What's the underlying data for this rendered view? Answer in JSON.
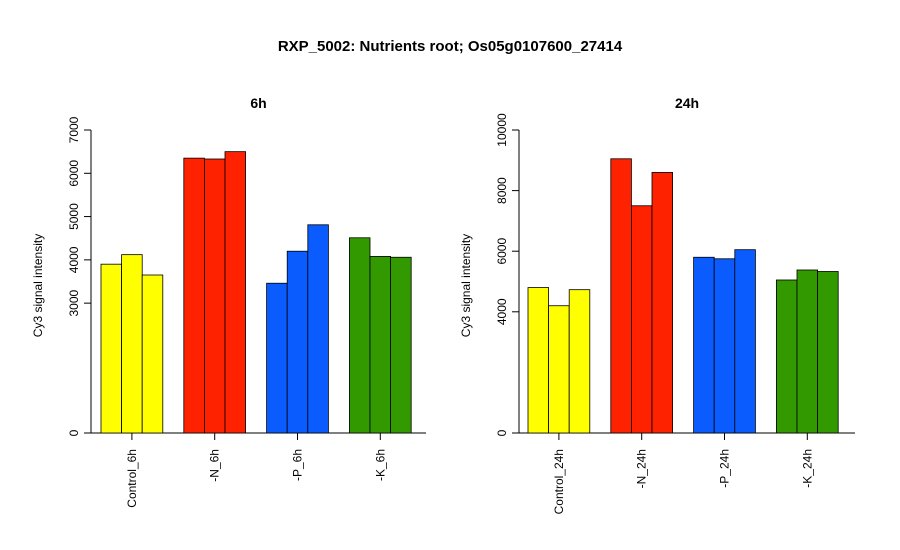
{
  "page": {
    "title": "RXP_5002: Nutrients root; Os05g0107600_27414"
  },
  "chart_data": [
    {
      "type": "bar",
      "title": "6h",
      "ylabel": "Cy3 signal intensity",
      "ylim": [
        0,
        7000
      ],
      "yticks": [
        0,
        3000,
        4000,
        5000,
        6000,
        7000
      ],
      "categories": [
        "Control_6h",
        "-N_6h",
        "-P_6h",
        "-K_6h"
      ],
      "colors": [
        "#ffff00",
        "#ff2200",
        "#0a5cff",
        "#339900"
      ],
      "values": [
        [
          3900,
          4120,
          3650
        ],
        [
          6350,
          6330,
          6500
        ],
        [
          3460,
          4200,
          4810
        ],
        [
          4510,
          4080,
          4060
        ]
      ]
    },
    {
      "type": "bar",
      "title": "24h",
      "ylabel": "Cy3 signal intensity",
      "ylim": [
        0,
        10000
      ],
      "yticks": [
        0,
        4000,
        6000,
        8000,
        10000
      ],
      "categories": [
        "Control_24h",
        "-N_24h",
        "-P_24h",
        "-K_24h"
      ],
      "colors": [
        "#ffff00",
        "#ff2200",
        "#0a5cff",
        "#339900"
      ],
      "values": [
        [
          4800,
          4200,
          4730
        ],
        [
          9050,
          7500,
          8600
        ],
        [
          5800,
          5750,
          6050
        ],
        [
          5050,
          5380,
          5330
        ]
      ]
    }
  ]
}
